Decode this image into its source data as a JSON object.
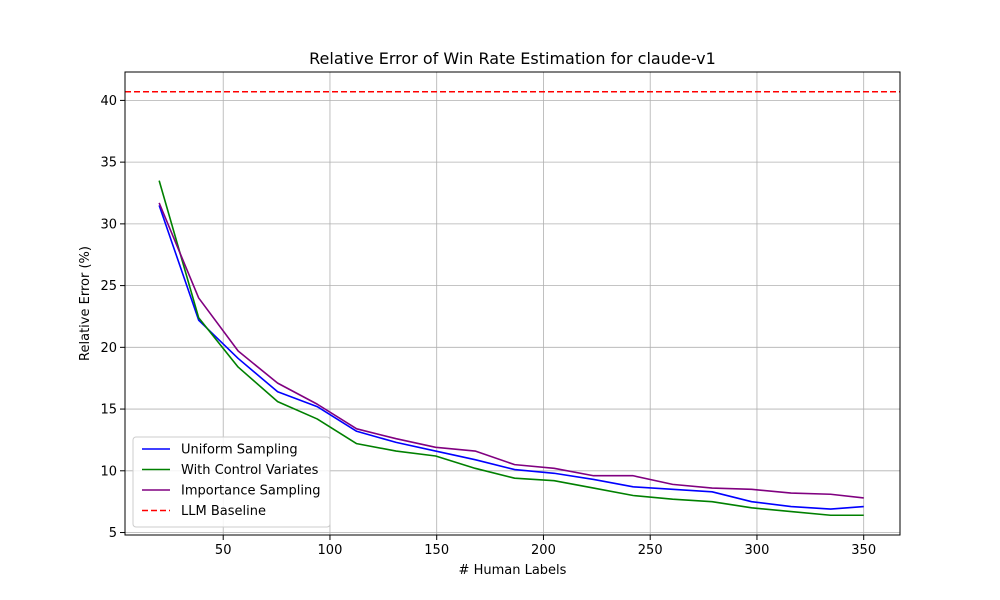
{
  "chart_data": {
    "type": "line",
    "title": "Relative Error of Win Rate Estimation for claude-v1",
    "xlabel": "# Human Labels",
    "ylabel": "Relative Error (%)",
    "xlim": [
      4,
      367
    ],
    "ylim": [
      4.8,
      42.3
    ],
    "xticks": [
      50,
      100,
      150,
      200,
      250,
      300,
      350
    ],
    "yticks": [
      5,
      10,
      15,
      20,
      25,
      30,
      35,
      40
    ],
    "grid": true,
    "legend_position": "lower-left",
    "x": [
      20,
      38.5,
      57,
      75.5,
      94,
      112.5,
      131,
      149.5,
      168,
      186.5,
      205,
      223.5,
      242,
      260.5,
      279,
      297.5,
      316,
      334.5,
      350
    ],
    "series": [
      {
        "name": "Uniform Sampling",
        "color": "#0000ff",
        "style": "solid",
        "values": [
          31.5,
          22.2,
          19.1,
          16.4,
          15.2,
          13.2,
          12.3,
          11.6,
          10.9,
          10.1,
          9.8,
          9.3,
          8.7,
          8.5,
          8.3,
          7.5,
          7.1,
          6.9,
          7.1
        ]
      },
      {
        "name": "With Control Variates",
        "color": "#008000",
        "style": "solid",
        "values": [
          33.5,
          22.4,
          18.4,
          15.6,
          14.2,
          12.2,
          11.6,
          11.2,
          10.2,
          9.4,
          9.2,
          8.6,
          8.0,
          7.7,
          7.5,
          7.0,
          6.7,
          6.4,
          6.4
        ]
      },
      {
        "name": "Importance Sampling",
        "color": "#800080",
        "style": "solid",
        "values": [
          31.7,
          24.0,
          19.7,
          17.1,
          15.4,
          13.4,
          12.6,
          11.9,
          11.6,
          10.5,
          10.2,
          9.6,
          9.6,
          8.9,
          8.6,
          8.5,
          8.2,
          8.1,
          7.8
        ]
      },
      {
        "name": "LLM Baseline",
        "color": "#ff0000",
        "style": "dashed",
        "constant": 40.7
      }
    ]
  }
}
